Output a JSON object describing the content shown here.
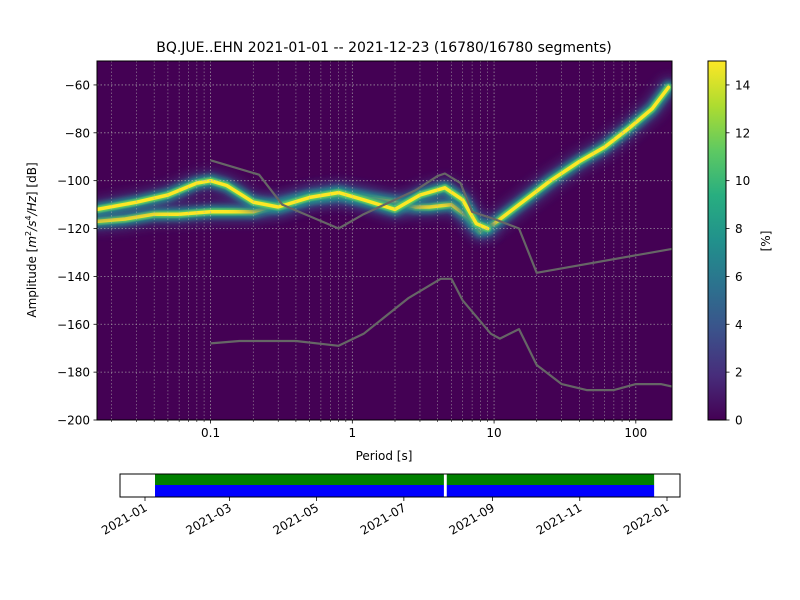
{
  "chart_data": [
    {
      "type": "heatmap",
      "title": "BQ.JUE..EHN   2021-01-01 -- 2021-12-23  (16780/16780 segments)",
      "xlabel": "Period [s]",
      "ylabel_prefix": "Amplitude [",
      "ylabel_unit_m": "m",
      "ylabel_unit_s": "/s",
      "ylabel_unit_hz": "/Hz",
      "ylabel_suffix": "] [dB]",
      "ylabel_sup_2": "2",
      "ylabel_sup_4": "4",
      "x_scale": "log",
      "xlim": [
        0.0158,
        180
      ],
      "ylim": [
        -200,
        -50
      ],
      "x_ticks": [
        {
          "value": 0.1,
          "label": "0.1"
        },
        {
          "value": 1,
          "label": "1"
        },
        {
          "value": 10,
          "label": "10"
        },
        {
          "value": 100,
          "label": "100"
        }
      ],
      "y_ticks": [
        {
          "value": -60,
          "label": "−60"
        },
        {
          "value": -80,
          "label": "−80"
        },
        {
          "value": -100,
          "label": "−100"
        },
        {
          "value": -120,
          "label": "−120"
        },
        {
          "value": -140,
          "label": "−140"
        },
        {
          "value": -160,
          "label": "−160"
        },
        {
          "value": -180,
          "label": "−180"
        },
        {
          "value": -200,
          "label": "−200"
        }
      ],
      "grid": true,
      "colormap": "viridis",
      "background_color": "#440154",
      "colorbar": {
        "label": "[%]",
        "range": [
          0,
          15
        ],
        "ticks": [
          {
            "value": 0,
            "label": "0"
          },
          {
            "value": 2,
            "label": "2"
          },
          {
            "value": 4,
            "label": "4"
          },
          {
            "value": 6,
            "label": "6"
          },
          {
            "value": 8,
            "label": "8"
          },
          {
            "value": 10,
            "label": "10"
          },
          {
            "value": 12,
            "label": "12"
          },
          {
            "value": 14,
            "label": "14"
          }
        ]
      },
      "density_ridges": [
        {
          "points": [
            [
              0.0158,
              -117
            ],
            [
              0.025,
              -116
            ],
            [
              0.04,
              -114
            ],
            [
              0.06,
              -114
            ],
            [
              0.1,
              -113
            ],
            [
              0.2,
              -113
            ],
            [
              0.3,
              -110
            ],
            [
              0.5,
              -107
            ],
            [
              0.8,
              -106
            ],
            [
              1.2,
              -107
            ],
            [
              2,
              -109
            ],
            [
              2.8,
              -111
            ],
            [
              3.5,
              -111
            ],
            [
              5,
              -110
            ],
            [
              6.5,
              -115
            ],
            [
              8,
              -121
            ],
            [
              10,
              -118
            ],
            [
              15,
              -110
            ],
            [
              25,
              -100
            ],
            [
              40,
              -92
            ],
            [
              60,
              -86
            ],
            [
              90,
              -78
            ],
            [
              130,
              -70
            ],
            [
              170,
              -61
            ]
          ]
        },
        {
          "points": [
            [
              0.0158,
              -112
            ],
            [
              0.03,
              -109
            ],
            [
              0.05,
              -106
            ],
            [
              0.08,
              -101
            ],
            [
              0.1,
              -100
            ],
            [
              0.13,
              -102
            ],
            [
              0.2,
              -109
            ],
            [
              0.3,
              -111
            ],
            [
              0.5,
              -107
            ],
            [
              0.8,
              -105
            ],
            [
              1.2,
              -108
            ],
            [
              2,
              -112
            ],
            [
              3,
              -106
            ],
            [
              4.5,
              -103
            ],
            [
              6,
              -108
            ],
            [
              7.5,
              -118
            ],
            [
              9,
              -120
            ]
          ]
        }
      ],
      "series": [
        {
          "name": "",
          "color": "#666666",
          "points": [
            [
              0.1,
              -91.5
            ],
            [
              0.22,
              -97.5
            ],
            [
              0.32,
              -110
            ],
            [
              0.8,
              -120
            ],
            [
              1.2,
              -114
            ],
            [
              2,
              -108
            ],
            [
              2.8,
              -104
            ],
            [
              4,
              -98
            ],
            [
              4.5,
              -97
            ],
            [
              5.8,
              -101
            ],
            [
              7,
              -113
            ],
            [
              10,
              -116
            ],
            [
              15,
              -120
            ],
            [
              20,
              -138.5
            ],
            [
              180,
              -128.5
            ]
          ]
        },
        {
          "name": "",
          "color": "#666666",
          "points": [
            [
              0.1,
              -168
            ],
            [
              0.16,
              -167
            ],
            [
              0.25,
              -167
            ],
            [
              0.4,
              -167
            ],
            [
              0.8,
              -169
            ],
            [
              1.2,
              -164
            ],
            [
              2.5,
              -149
            ],
            [
              4.2,
              -141
            ],
            [
              5,
              -141
            ],
            [
              6,
              -150
            ],
            [
              9.5,
              -164
            ],
            [
              11,
              -166
            ],
            [
              15,
              -162
            ],
            [
              20,
              -177
            ],
            [
              30,
              -185
            ],
            [
              45,
              -187.5
            ],
            [
              70,
              -187.5
            ],
            [
              100,
              -185
            ],
            [
              150,
              -185
            ],
            [
              180,
              -186
            ]
          ]
        }
      ]
    },
    {
      "type": "timeline",
      "x_ticks": [
        "2021-01",
        "2021-03",
        "2021-05",
        "2021-07",
        "2021-09",
        "2021-11",
        "2022-01"
      ],
      "xlim": [
        "2021-01-01",
        "2022-01-01"
      ],
      "coverage_segments": [
        {
          "start": "2021-01-08",
          "end": "2021-07-29"
        },
        {
          "start": "2021-07-31",
          "end": "2021-12-23"
        }
      ],
      "gap": "2021-07-30",
      "bar_colors": {
        "top": "#008000",
        "bottom": "#0000ff"
      }
    }
  ]
}
